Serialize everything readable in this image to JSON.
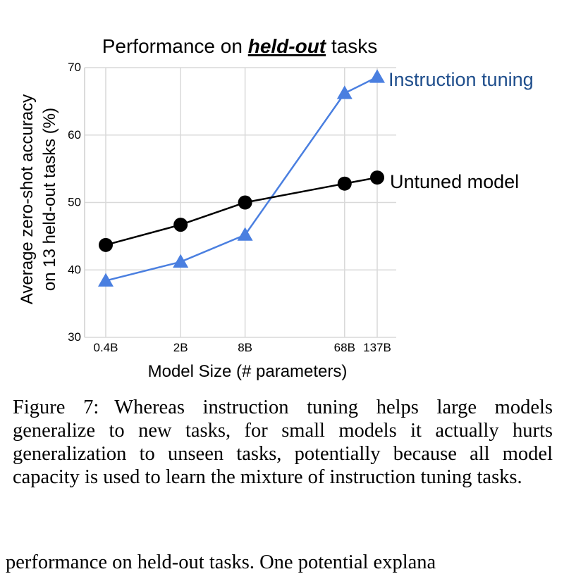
{
  "chart_data": {
    "type": "line",
    "title": {
      "prefix": "Performance on ",
      "emphasis": "held-out",
      "suffix": " tasks"
    },
    "ylabel_line1": "Average zero-shot accuracy",
    "ylabel_line2": "on 13 held-out tasks (%)",
    "xlabel": "Model Size (# parameters)",
    "x_categories": [
      "0.4B",
      "2B",
      "8B",
      "68B",
      "137B"
    ],
    "x_values_billions": [
      0.4,
      2,
      8,
      68,
      137
    ],
    "x_scale": "log",
    "ylim": [
      30,
      70
    ],
    "yticks": [
      30,
      40,
      50,
      60,
      70
    ],
    "grid": true,
    "series": [
      {
        "name": "Instruction tuning",
        "color": "#4a7fe0",
        "label_color": "#1f4e8c",
        "marker": "triangle",
        "values": [
          38.4,
          41.2,
          45.2,
          66.2,
          68.6
        ]
      },
      {
        "name": "Untuned model",
        "color": "#000000",
        "label_color": "#000000",
        "marker": "circle",
        "values": [
          43.7,
          46.7,
          50.0,
          52.8,
          53.7
        ]
      }
    ]
  },
  "caption": {
    "label": "Figure 7:",
    "text": "Whereas instruction tuning helps large models generalize to new tasks, for small models it actually hurts generalization to unseen tasks, potentially because all model capacity is used to learn the mixture of instruction tuning tasks."
  },
  "body_text_fragment": "performance on held-out tasks. One potential explana"
}
